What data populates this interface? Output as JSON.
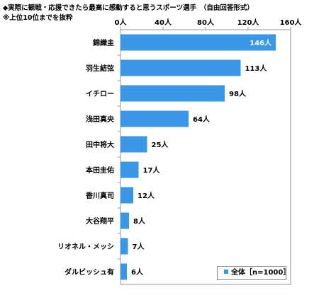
{
  "chart_data": {
    "type": "bar",
    "orientation": "horizontal",
    "title": "◆実際に観戦・応援できたら最高に感動すると思うスポーツ選手　（自由回答形式）",
    "subtitle": "※上位10位までを抜粋",
    "categories": [
      "錦織圭",
      "羽生結弦",
      "イチロー",
      "浅田真央",
      "田中将大",
      "本田圭佑",
      "香川真司",
      "大谷翔平",
      "リオネル・メッシ",
      "ダルビッシュ有"
    ],
    "values": [
      146,
      113,
      98,
      64,
      25,
      17,
      12,
      8,
      7,
      6
    ],
    "value_labels": [
      "146人",
      "113人",
      "98人",
      "64人",
      "25人",
      "17人",
      "12人",
      "8人",
      "7人",
      "6人"
    ],
    "xlim": [
      0,
      160
    ],
    "xticks": [
      0,
      40,
      80,
      120,
      160
    ],
    "xtick_labels": [
      "0人",
      "40人",
      "80人",
      "120人",
      "160人"
    ],
    "xaxis_position": "top",
    "grid": false,
    "legend": {
      "label": "全体［n=1000］",
      "position": "bottom-right"
    },
    "bar_color": "#3a97e8"
  }
}
